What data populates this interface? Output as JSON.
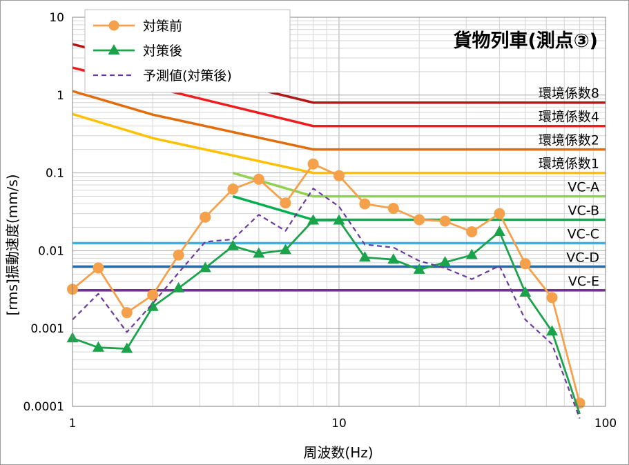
{
  "chart_data": {
    "type": "line",
    "title": "貨物列車(測点③)",
    "xlabel": "周波数(Hz)",
    "ylabel": "[rms]振動速度(mm/s)",
    "xscale": "log",
    "yscale": "log",
    "xlim": [
      1,
      100
    ],
    "ylim": [
      0.0001,
      10
    ],
    "grid": true,
    "legend_position": "top-left",
    "x_ticks": [
      {
        "value": 1,
        "label": "1"
      },
      {
        "value": 10,
        "label": "10"
      },
      {
        "value": 100,
        "label": "100"
      }
    ],
    "y_ticks": [
      {
        "value": 10,
        "label": "10"
      },
      {
        "value": 1,
        "label": "1"
      },
      {
        "value": 0.1,
        "label": "0.1"
      },
      {
        "value": 0.01,
        "label": "0.01"
      },
      {
        "value": 0.001,
        "label": "0.001"
      },
      {
        "value": 0.0001,
        "label": "0.0001"
      }
    ],
    "x": [
      1,
      1.25,
      1.6,
      2,
      2.5,
      3.15,
      4,
      5,
      6.3,
      8,
      10,
      12.5,
      16,
      20,
      25,
      31.5,
      40,
      50,
      63,
      80
    ],
    "series": [
      {
        "name": "対策前",
        "color": "#f5a04a",
        "marker": "circle",
        "values": [
          0.0032,
          0.006,
          0.0016,
          0.0027,
          0.0088,
          0.027,
          0.062,
          0.083,
          0.041,
          0.13,
          0.092,
          0.04,
          0.035,
          0.025,
          0.024,
          0.0175,
          0.03,
          0.0068,
          0.0025,
          0.00011
        ]
      },
      {
        "name": "対策後",
        "color": "#1aa34a",
        "marker": "triangle",
        "values": [
          0.00075,
          0.00057,
          0.00055,
          0.0019,
          0.0033,
          0.006,
          0.0115,
          0.0092,
          0.0102,
          0.0245,
          0.0245,
          0.0082,
          0.0077,
          0.0057,
          0.0071,
          0.0088,
          0.0175,
          0.0029,
          0.00092,
          8e-05
        ]
      },
      {
        "name": "予測値(対策後)",
        "color": "#6a3aa0",
        "marker": "none",
        "dashed": true,
        "values": [
          0.0013,
          0.0028,
          0.0009,
          0.0021,
          0.0052,
          0.013,
          0.014,
          0.029,
          0.018,
          0.063,
          0.037,
          0.012,
          0.011,
          0.0074,
          0.006,
          0.0043,
          0.0064,
          0.0013,
          0.00063,
          7e-05
        ]
      }
    ],
    "reference_lines": [
      {
        "label": "環境係数8",
        "color": "#b01818",
        "points": [
          [
            1,
            4.5
          ],
          [
            8,
            0.8
          ],
          [
            100,
            0.8
          ]
        ]
      },
      {
        "label": "環境係数4",
        "color": "#ee1c1c",
        "points": [
          [
            1,
            2.25
          ],
          [
            8,
            0.4
          ],
          [
            100,
            0.4
          ]
        ]
      },
      {
        "label": "環境係数2",
        "color": "#e36c0a",
        "points": [
          [
            1,
            1.125
          ],
          [
            2,
            0.56
          ],
          [
            8,
            0.2
          ],
          [
            100,
            0.2
          ]
        ]
      },
      {
        "label": "環境係数1",
        "color": "#ffc000",
        "points": [
          [
            1,
            0.57
          ],
          [
            2,
            0.28
          ],
          [
            8,
            0.1
          ],
          [
            100,
            0.1
          ]
        ]
      },
      {
        "label": "VC-A",
        "color": "#92d050",
        "points": [
          [
            4,
            0.1
          ],
          [
            8,
            0.05
          ],
          [
            100,
            0.05
          ]
        ]
      },
      {
        "label": "VC-B",
        "color": "#00b050",
        "points": [
          [
            4,
            0.05
          ],
          [
            8,
            0.025
          ],
          [
            100,
            0.025
          ]
        ]
      },
      {
        "label": "VC-C",
        "color": "#33b5e5",
        "points": [
          [
            1,
            0.0125
          ],
          [
            100,
            0.0125
          ]
        ]
      },
      {
        "label": "VC-D",
        "color": "#1f6fb2",
        "points": [
          [
            1,
            0.00625
          ],
          [
            100,
            0.00625
          ]
        ]
      },
      {
        "label": "VC-E",
        "color": "#7030a0",
        "points": [
          [
            1,
            0.0031
          ],
          [
            100,
            0.0031
          ]
        ]
      }
    ]
  }
}
